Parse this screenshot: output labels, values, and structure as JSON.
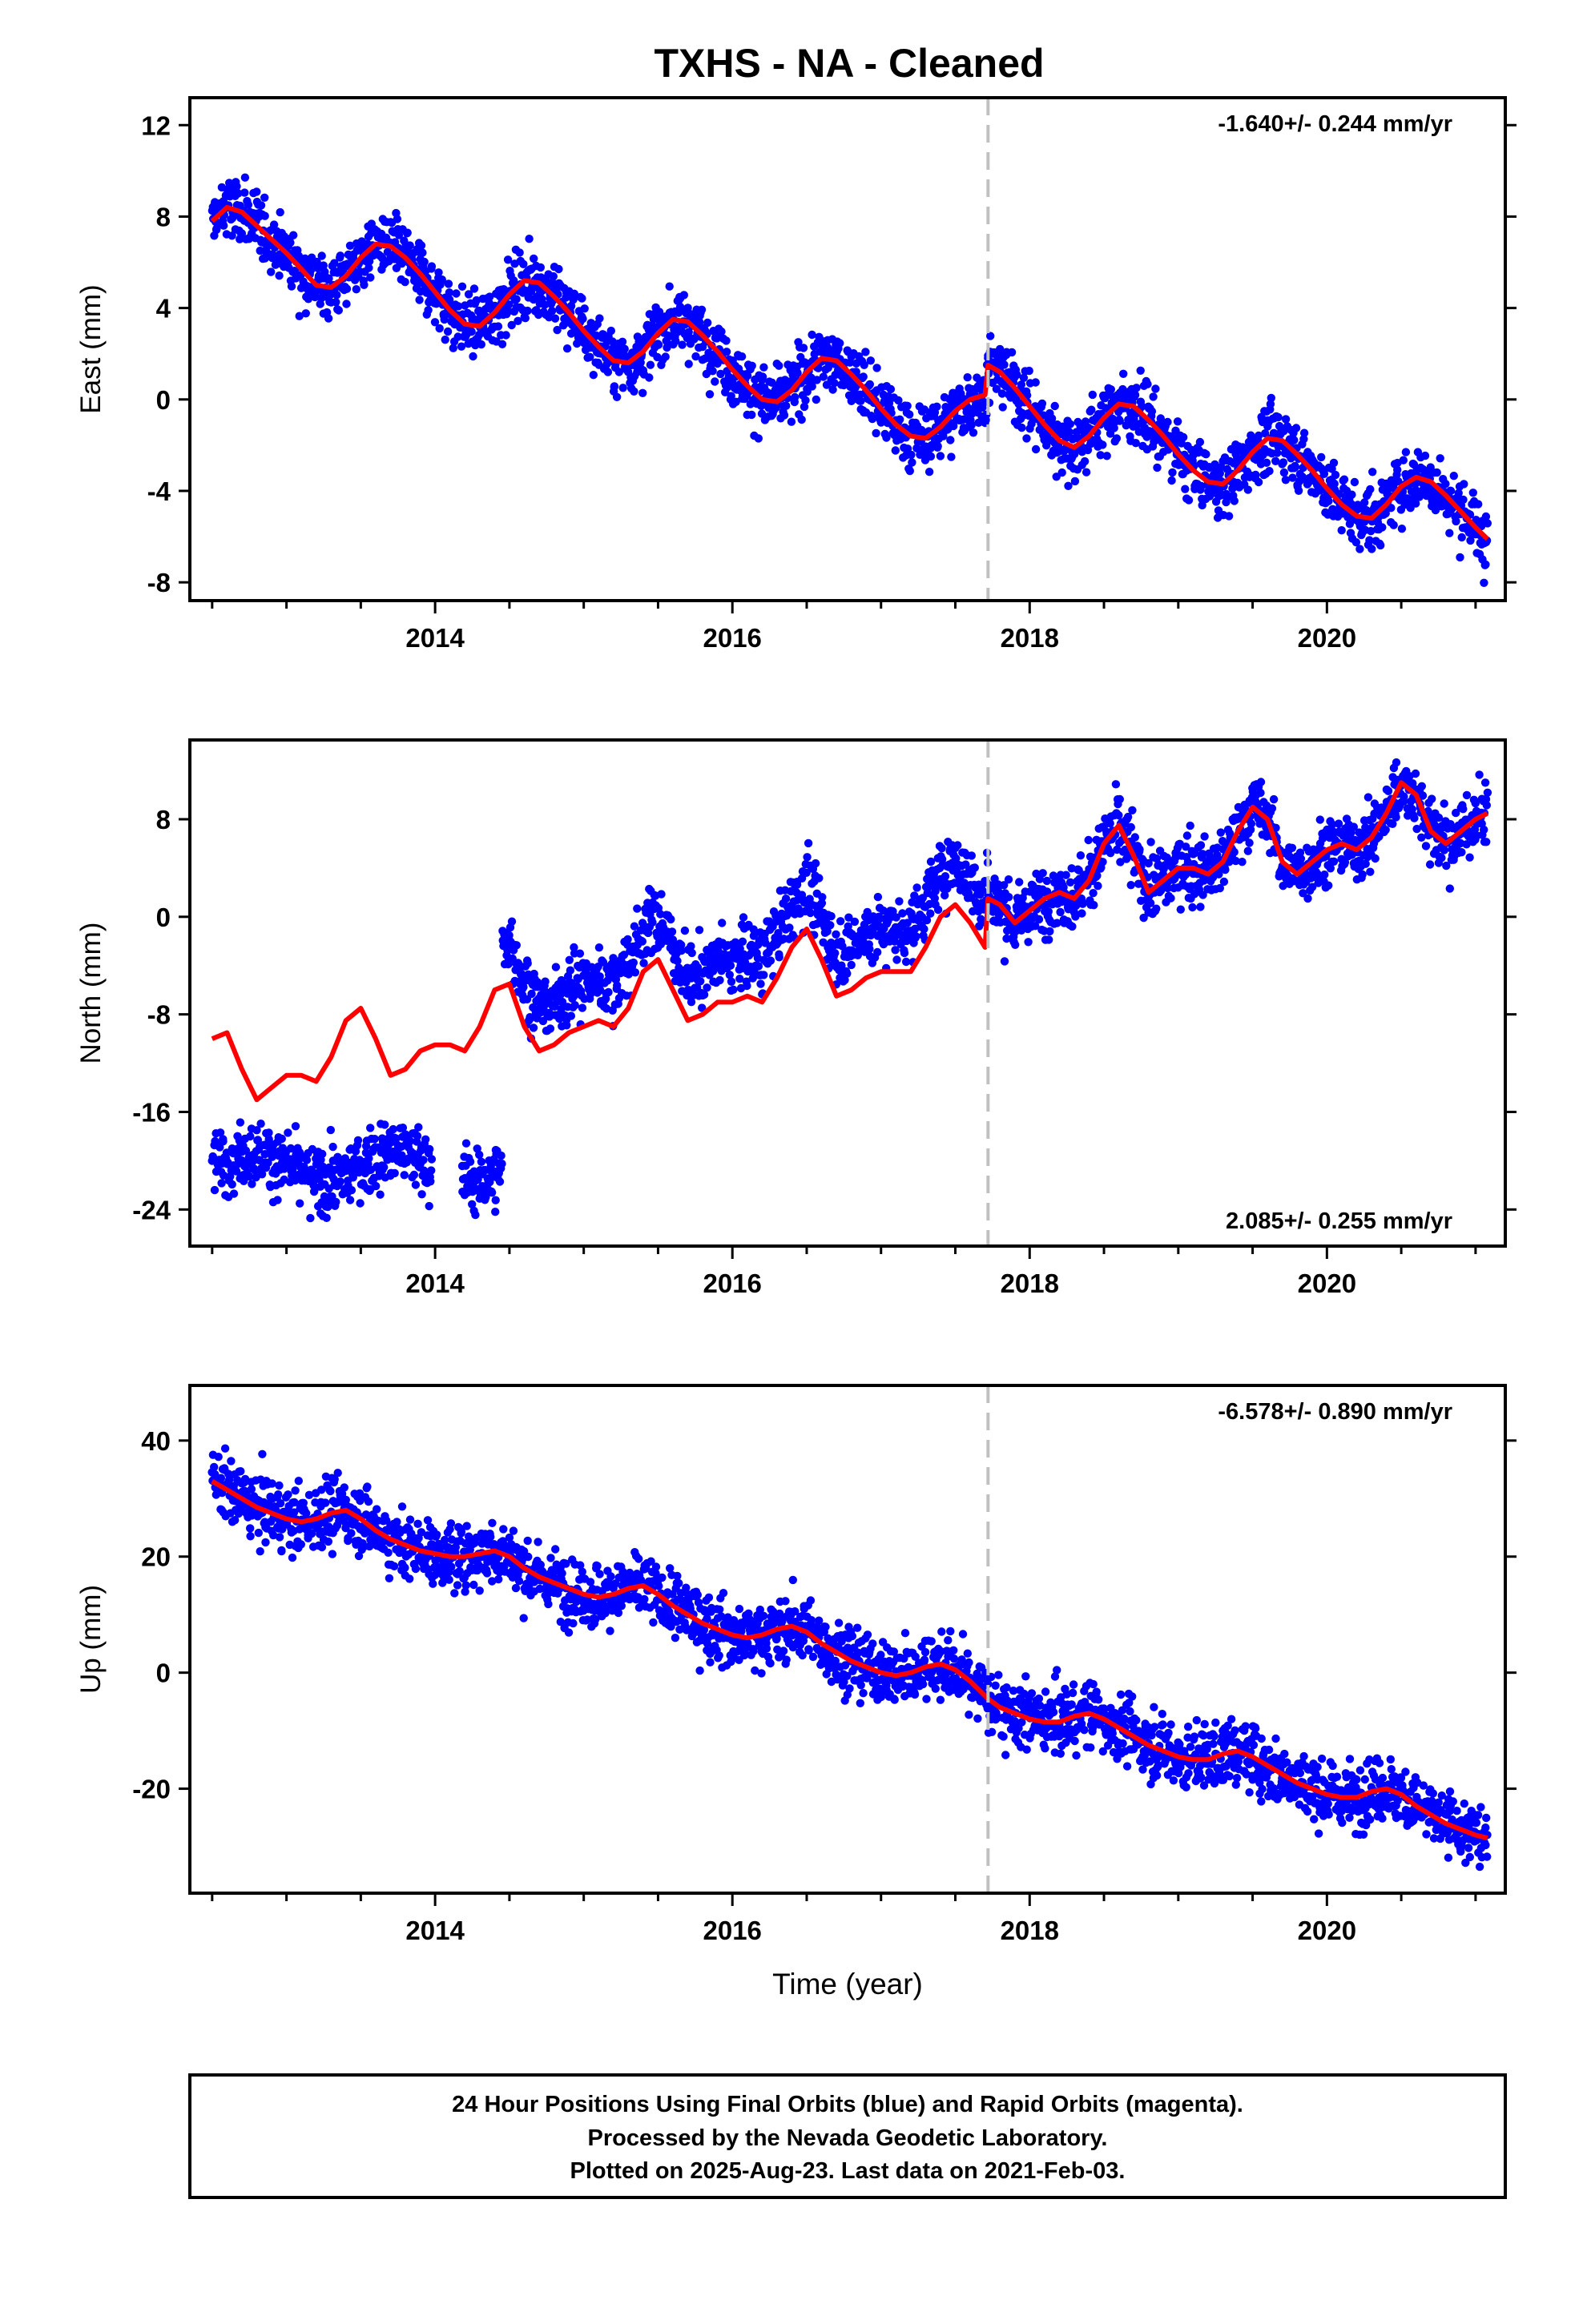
{
  "title": "TXHS  - NA - Cleaned",
  "colors": {
    "points": "#0000ff",
    "model": "#ff0000",
    "event_line": "#c0c0c0",
    "frame": "#000000"
  },
  "chart_data": [
    {
      "type": "scatter",
      "name": "east",
      "ylabel": "East (mm)",
      "xlabel": "",
      "xlim": [
        2012.35,
        2021.2
      ],
      "ylim": [
        -8.8,
        13.2
      ],
      "xticks": [
        2014,
        2016,
        2018,
        2020
      ],
      "yticks": [
        12,
        8,
        4,
        0,
        -4,
        -8
      ],
      "rate_label": "-1.640+/- 0.244 mm/yr",
      "rate_position": "top-right",
      "event_line_x": 2017.72,
      "model_curve": {
        "x": [
          2012.5,
          2012.6,
          2012.7,
          2012.8,
          2012.9,
          2013.0,
          2013.1,
          2013.2,
          2013.3,
          2013.4,
          2013.5,
          2013.6,
          2013.7,
          2013.8,
          2013.9,
          2014.0,
          2014.1,
          2014.2,
          2014.3,
          2014.4,
          2014.5,
          2014.6,
          2014.7,
          2014.8,
          2014.9,
          2015.0,
          2015.1,
          2015.2,
          2015.3,
          2015.4,
          2015.5,
          2015.6,
          2015.7,
          2015.8,
          2015.9,
          2016.0,
          2016.1,
          2016.2,
          2016.3,
          2016.4,
          2016.5,
          2016.6,
          2016.7,
          2016.8,
          2016.9,
          2017.0,
          2017.1,
          2017.2,
          2017.3,
          2017.4,
          2017.5,
          2017.6,
          2017.7,
          2017.72,
          2017.8,
          2017.9,
          2018.0,
          2018.1,
          2018.2,
          2018.3,
          2018.4,
          2018.5,
          2018.6,
          2018.7,
          2018.8,
          2018.9,
          2019.0,
          2019.1,
          2019.2,
          2019.3,
          2019.4,
          2019.5,
          2019.6,
          2019.7,
          2019.8,
          2019.9,
          2020.0,
          2020.1,
          2020.2,
          2020.3,
          2020.4,
          2020.5,
          2020.6,
          2020.7,
          2020.8,
          2020.9,
          2021.0,
          2021.08
        ],
        "y": [
          7.8,
          8.4,
          8.2,
          7.6,
          7.0,
          6.4,
          5.7,
          5.0,
          4.9,
          5.4,
          6.2,
          6.8,
          6.7,
          6.2,
          5.5,
          4.7,
          3.9,
          3.3,
          3.2,
          3.8,
          4.6,
          5.2,
          5.1,
          4.5,
          3.8,
          3.0,
          2.3,
          1.7,
          1.6,
          2.1,
          2.9,
          3.5,
          3.4,
          2.8,
          2.1,
          1.3,
          0.6,
          0.0,
          -0.1,
          0.4,
          1.2,
          1.8,
          1.7,
          1.1,
          0.4,
          -0.4,
          -1.1,
          -1.6,
          -1.7,
          -1.2,
          -0.5,
          0.0,
          0.2,
          1.5,
          1.2,
          0.5,
          -0.3,
          -1.1,
          -1.8,
          -2.1,
          -1.6,
          -0.8,
          -0.2,
          -0.3,
          -0.9,
          -1.6,
          -2.4,
          -3.1,
          -3.6,
          -3.7,
          -3.1,
          -2.3,
          -1.7,
          -1.8,
          -2.4,
          -3.1,
          -3.9,
          -4.6,
          -5.1,
          -5.2,
          -4.6,
          -3.8,
          -3.4,
          -3.6,
          -4.2,
          -4.9,
          -5.6,
          -6.1
        ]
      }
    },
    {
      "type": "scatter",
      "name": "north",
      "ylabel": "North (mm)",
      "xlabel": "",
      "xlim": [
        2012.35,
        2021.2
      ],
      "ylim": [
        -27,
        14.5
      ],
      "xticks": [
        2014,
        2016,
        2018,
        2020
      ],
      "yticks": [
        8,
        0,
        -8,
        -16,
        -24
      ],
      "rate_label": "2.085+/- 0.255 mm/yr",
      "rate_position": "bottom-right",
      "event_line_x": 2017.72,
      "model_curve": {
        "x": [
          2012.5,
          2012.6,
          2012.7,
          2012.8,
          2012.9,
          2013.0,
          2013.1,
          2013.2,
          2013.3,
          2013.4,
          2013.5,
          2013.6,
          2013.7,
          2013.8,
          2013.9,
          2014.0,
          2014.1,
          2014.2,
          2014.3,
          2014.4,
          2014.5,
          2014.6,
          2014.7,
          2014.8,
          2014.9,
          2015.0,
          2015.1,
          2015.2,
          2015.3,
          2015.4,
          2015.5,
          2015.6,
          2015.7,
          2015.8,
          2015.9,
          2016.0,
          2016.1,
          2016.2,
          2016.3,
          2016.4,
          2016.5,
          2016.6,
          2016.7,
          2016.8,
          2016.9,
          2017.0,
          2017.1,
          2017.2,
          2017.3,
          2017.4,
          2017.5,
          2017.6,
          2017.7,
          2017.72,
          2017.8,
          2017.9,
          2018.0,
          2018.1,
          2018.2,
          2018.3,
          2018.4,
          2018.5,
          2018.6,
          2018.7,
          2018.8,
          2018.9,
          2019.0,
          2019.1,
          2019.2,
          2019.3,
          2019.4,
          2019.5,
          2019.6,
          2019.7,
          2019.8,
          2019.9,
          2020.0,
          2020.1,
          2020.2,
          2020.3,
          2020.4,
          2020.5,
          2020.6,
          2020.7,
          2020.8,
          2020.9,
          2021.0,
          2021.08
        ],
        "y": [
          -10.0,
          -9.5,
          -12.5,
          -15.0,
          -14.0,
          -13.0,
          -13.0,
          -13.5,
          -11.5,
          -8.5,
          -7.5,
          -10.0,
          -13.0,
          -12.5,
          -11.0,
          -10.5,
          -10.5,
          -11.0,
          -9.0,
          -6.0,
          -5.5,
          -9.0,
          -11.0,
          -10.5,
          -9.5,
          -9.0,
          -8.5,
          -9.0,
          -7.5,
          -4.5,
          -3.5,
          -6.0,
          -8.5,
          -8.0,
          -7.0,
          -7.0,
          -6.5,
          -7.0,
          -5.0,
          -2.5,
          -1.0,
          -3.5,
          -6.5,
          -6.0,
          -5.0,
          -4.5,
          -4.5,
          -4.5,
          -2.5,
          0.0,
          1.0,
          -0.5,
          -2.5,
          1.5,
          1.0,
          -0.5,
          0.5,
          1.5,
          2.0,
          1.5,
          3.0,
          6.0,
          7.5,
          5.0,
          2.0,
          3.0,
          4.0,
          4.0,
          3.5,
          4.5,
          7.0,
          9.0,
          8.0,
          4.5,
          3.5,
          4.5,
          5.5,
          6.0,
          5.5,
          6.5,
          8.5,
          11.0,
          10.0,
          7.0,
          6.0,
          7.0,
          8.0,
          8.5
        ]
      }
    },
    {
      "type": "scatter",
      "name": "up",
      "ylabel": "Up (mm)",
      "xlabel": "Time (year)",
      "xlim": [
        2012.35,
        2021.2
      ],
      "ylim": [
        -38,
        49.5
      ],
      "xticks": [
        2014,
        2016,
        2018,
        2020
      ],
      "yticks": [
        40,
        20,
        0,
        -20
      ],
      "rate_label": "-6.578+/- 0.890 mm/yr",
      "rate_position": "top-right",
      "event_line_x": 2017.72,
      "model_curve": {
        "x": [
          2012.5,
          2012.6,
          2012.7,
          2012.8,
          2012.9,
          2013.0,
          2013.1,
          2013.2,
          2013.3,
          2013.4,
          2013.5,
          2013.6,
          2013.7,
          2013.8,
          2013.9,
          2014.0,
          2014.1,
          2014.2,
          2014.3,
          2014.4,
          2014.5,
          2014.6,
          2014.7,
          2014.8,
          2014.9,
          2015.0,
          2015.1,
          2015.2,
          2015.3,
          2015.4,
          2015.5,
          2015.6,
          2015.7,
          2015.8,
          2015.9,
          2016.0,
          2016.1,
          2016.2,
          2016.3,
          2016.4,
          2016.5,
          2016.6,
          2016.7,
          2016.8,
          2016.9,
          2017.0,
          2017.1,
          2017.2,
          2017.3,
          2017.4,
          2017.5,
          2017.6,
          2017.7,
          2017.72,
          2017.8,
          2017.9,
          2018.0,
          2018.1,
          2018.2,
          2018.3,
          2018.4,
          2018.5,
          2018.6,
          2018.7,
          2018.8,
          2018.9,
          2019.0,
          2019.1,
          2019.2,
          2019.3,
          2019.4,
          2019.5,
          2019.6,
          2019.7,
          2019.8,
          2019.9,
          2020.0,
          2020.1,
          2020.2,
          2020.3,
          2020.4,
          2020.5,
          2020.6,
          2020.7,
          2020.8,
          2020.9,
          2021.0,
          2021.08
        ],
        "y": [
          33.0,
          31.5,
          30.0,
          28.5,
          27.5,
          26.5,
          26.0,
          26.5,
          27.5,
          28.0,
          26.5,
          24.5,
          23.0,
          22.0,
          21.0,
          20.5,
          20.0,
          20.0,
          20.5,
          21.0,
          20.0,
          18.0,
          16.5,
          15.5,
          14.5,
          13.5,
          13.0,
          13.5,
          14.5,
          15.0,
          13.5,
          11.5,
          10.0,
          8.5,
          7.5,
          6.5,
          6.0,
          6.5,
          7.5,
          8.0,
          7.0,
          5.0,
          3.5,
          2.0,
          1.0,
          0.0,
          -0.5,
          0.0,
          1.0,
          1.5,
          0.5,
          -1.5,
          -4.0,
          -4.5,
          -6.0,
          -7.0,
          -8.0,
          -8.5,
          -8.5,
          -7.5,
          -7.0,
          -8.0,
          -9.5,
          -11.0,
          -12.5,
          -13.5,
          -14.5,
          -15.0,
          -15.0,
          -14.0,
          -13.5,
          -14.5,
          -16.0,
          -17.5,
          -19.0,
          -20.0,
          -21.0,
          -21.5,
          -21.5,
          -20.5,
          -20.0,
          -21.0,
          -23.0,
          -24.5,
          -26.0,
          -27.0,
          -28.0,
          -28.5
        ]
      }
    }
  ],
  "footer": {
    "line1": "24 Hour Positions Using Final Orbits (blue) and Rapid Orbits (magenta).",
    "line2": "Processed by the Nevada Geodetic Laboratory.",
    "line3": "Plotted on 2025-Aug-23. Last data on 2021-Feb-03."
  }
}
